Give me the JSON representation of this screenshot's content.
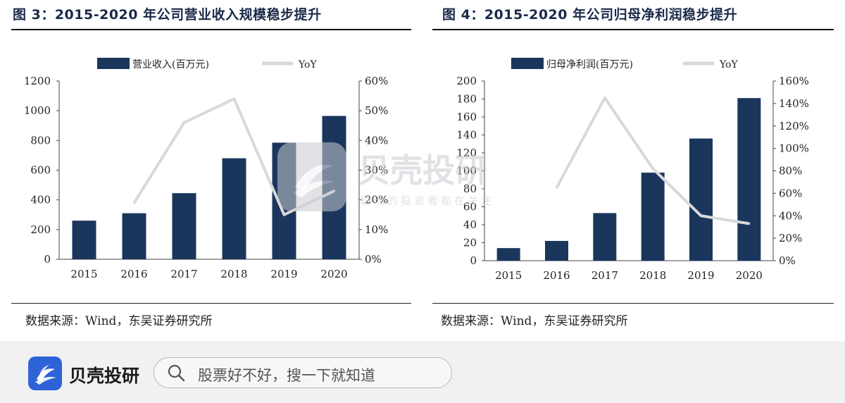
{
  "left": {
    "title": "图 3：2015-2020 年公司营业收入规模稳步提升",
    "source": "数据来源：Wind，东吴证券研究所"
  },
  "right": {
    "title": "图 4：2015-2020 年公司归母净利润稳步提升",
    "source": "数据来源：Wind，东吴证券研究所"
  },
  "chart_data": [
    {
      "type": "bar",
      "categories": [
        "2015",
        "2016",
        "2017",
        "2018",
        "2019",
        "2020"
      ],
      "series": [
        {
          "name": "营业收入(百万元)",
          "type": "bar",
          "axis": "left",
          "values": [
            260,
            310,
            445,
            680,
            785,
            965
          ],
          "color": "#1b365d"
        },
        {
          "name": "YoY",
          "type": "line",
          "axis": "right",
          "values": [
            null,
            19,
            46,
            54,
            15,
            23
          ],
          "unit": "%",
          "color": "#d9d9d9"
        }
      ],
      "yleft": {
        "min": 0,
        "max": 1200,
        "ticks": [
          0,
          200,
          400,
          600,
          800,
          1000,
          1200
        ]
      },
      "yright": {
        "min": 0,
        "max": 60,
        "ticks": [
          "0%",
          "10%",
          "20%",
          "30%",
          "40%",
          "50%",
          "60%"
        ]
      },
      "legend": "top",
      "grid": false
    },
    {
      "type": "bar",
      "categories": [
        "2015",
        "2016",
        "2017",
        "2018",
        "2019",
        "2020"
      ],
      "series": [
        {
          "name": "归母净利润(百万元)",
          "type": "bar",
          "axis": "left",
          "values": [
            14,
            22,
            53,
            98,
            136,
            181
          ],
          "color": "#1b365d"
        },
        {
          "name": "YoY",
          "type": "line",
          "axis": "right",
          "values": [
            null,
            65,
            145,
            82,
            40,
            33
          ],
          "unit": "%",
          "color": "#d9d9d9"
        }
      ],
      "yleft": {
        "min": 0,
        "max": 200,
        "ticks": [
          0,
          20,
          40,
          60,
          80,
          100,
          120,
          140,
          160,
          180,
          200
        ]
      },
      "yright": {
        "min": 0,
        "max": 160,
        "ticks": [
          "0%",
          "20%",
          "40%",
          "60%",
          "80%",
          "100%",
          "120%",
          "140%",
          "160%"
        ]
      },
      "legend": "top",
      "grid": false
    }
  ],
  "watermark": {
    "name": "贝壳投研",
    "slogan": "聪明的投资者都在关注"
  },
  "bottom_bar": {
    "app_name": "贝壳投研",
    "search_placeholder": "股票好不好，搜一下就知道",
    "accent": "#2e63d8"
  }
}
